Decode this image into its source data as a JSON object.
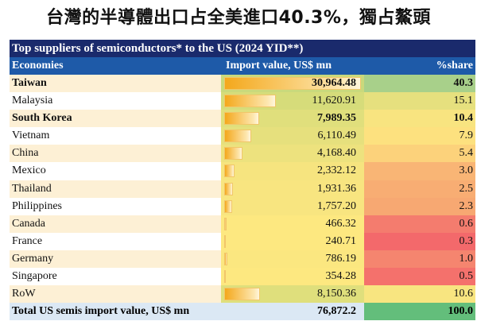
{
  "title": "台灣的半導體出口占全美進口40.3%，獨占鰲頭",
  "table": {
    "caption": "Top suppliers of semiconductors* to the US (2024 YID**)",
    "headers": [
      "Economies",
      "Import value, US$ mn",
      "%share"
    ],
    "max_value": 30964.48,
    "rows": [
      {
        "economy": "Taiwan",
        "value": "30,964.48",
        "num": 30964.48,
        "share": "40.3",
        "bold": true,
        "vcolor": "#c9d97c",
        "scolor": "#a8d08a"
      },
      {
        "economy": "Malaysia",
        "value": "11,620.91",
        "num": 11620.91,
        "share": "15.1",
        "bold": false,
        "vcolor": "#d6dc7a",
        "scolor": "#e6e07e"
      },
      {
        "economy": "South Korea",
        "value": "7,989.35",
        "num": 7989.35,
        "share": "10.4",
        "bold": true,
        "vcolor": "#e0df7c",
        "scolor": "#f8e480"
      },
      {
        "economy": "Vietnam",
        "value": "6,110.49",
        "num": 6110.49,
        "share": "7.9",
        "bold": false,
        "vcolor": "#e6e07d",
        "scolor": "#fde17f"
      },
      {
        "economy": "China",
        "value": "4,168.40",
        "num": 4168.4,
        "share": "5.4",
        "bold": false,
        "vcolor": "#ede27e",
        "scolor": "#fcd27b"
      },
      {
        "economy": "Mexico",
        "value": "2,332.12",
        "num": 2332.12,
        "share": "3.0",
        "bold": false,
        "vcolor": "#f6e47f",
        "scolor": "#f9b575"
      },
      {
        "economy": "Thailand",
        "value": "1,931.36",
        "num": 1931.36,
        "share": "2.5",
        "bold": false,
        "vcolor": "#f8e580",
        "scolor": "#f8ad73"
      },
      {
        "economy": "Philippines",
        "value": "1,757.20",
        "num": 1757.2,
        "share": "2.3",
        "bold": false,
        "vcolor": "#f8e580",
        "scolor": "#f7a872"
      },
      {
        "economy": "Canada",
        "value": "466.32",
        "num": 466.32,
        "share": "0.6",
        "bold": false,
        "vcolor": "#fde880",
        "scolor": "#f47c6e"
      },
      {
        "economy": "France",
        "value": "240.71",
        "num": 240.71,
        "share": "0.3",
        "bold": false,
        "vcolor": "#fde880",
        "scolor": "#f3696b"
      },
      {
        "economy": "Germany",
        "value": "786.19",
        "num": 786.19,
        "share": "1.0",
        "bold": false,
        "vcolor": "#fbe780",
        "scolor": "#f5856f"
      },
      {
        "economy": "Singapore",
        "value": "354.28",
        "num": 354.28,
        "share": "0.5",
        "bold": false,
        "vcolor": "#fde880",
        "scolor": "#f4716c"
      },
      {
        "economy": "RoW",
        "value": "8,150.36",
        "num": 8150.36,
        "share": "10.6",
        "bold": false,
        "vcolor": "#dfdf7c",
        "scolor": "#f8e580"
      }
    ],
    "total": {
      "label": "Total US semis import value, US$ mn",
      "value": "76,872.2",
      "share": "100.0",
      "scolor": "#63be7b"
    }
  }
}
